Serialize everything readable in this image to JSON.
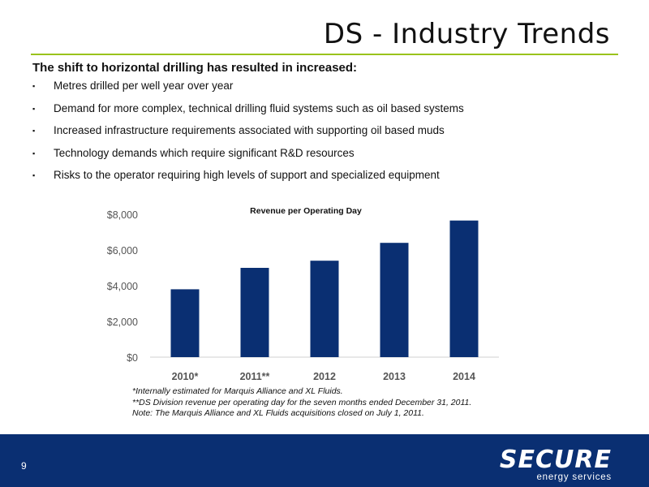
{
  "slide": {
    "title": "DS - Industry Trends",
    "lead": "The shift to horizontal drilling has resulted in increased:",
    "bullets": [
      "Metres drilled per well year over year",
      "Demand for more complex, technical drilling fluid systems such as oil based systems",
      "Increased infrastructure requirements associated with supporting oil based muds",
      "Technology demands which require significant R&D resources",
      "Risks to the operator requiring high levels of support and specialized equipment"
    ],
    "bullet_glyph": "▪",
    "notes": [
      "*Internally estimated for Marquis Alliance and XL Fluids.",
      "**DS Division revenue per operating day for the seven months ended December 31, 2011.",
      "Note: The Marquis Alliance and XL Fluids acquisitions closed on July 1, 2011."
    ]
  },
  "footer": {
    "page_number": "9",
    "logo_word": "SECURE",
    "logo_sub": "energy services",
    "color": "#0a2f72"
  },
  "chart_data": {
    "type": "bar",
    "title": "Revenue per Operating Day",
    "categories": [
      "2010*",
      "2011**",
      "2012",
      "2013",
      "2014"
    ],
    "values": [
      3800,
      5000,
      5400,
      6400,
      7650
    ],
    "ylim": [
      0,
      8000
    ],
    "yticks": [
      0,
      2000,
      4000,
      6000,
      8000
    ],
    "ytick_labels": [
      "$0",
      "$2,000",
      "$4,000",
      "$6,000",
      "$8,000"
    ],
    "xlabel": "",
    "ylabel": "",
    "grid": false,
    "bar_color": "#0a2f72"
  },
  "colors": {
    "accent_rule": "#9ac31c"
  }
}
